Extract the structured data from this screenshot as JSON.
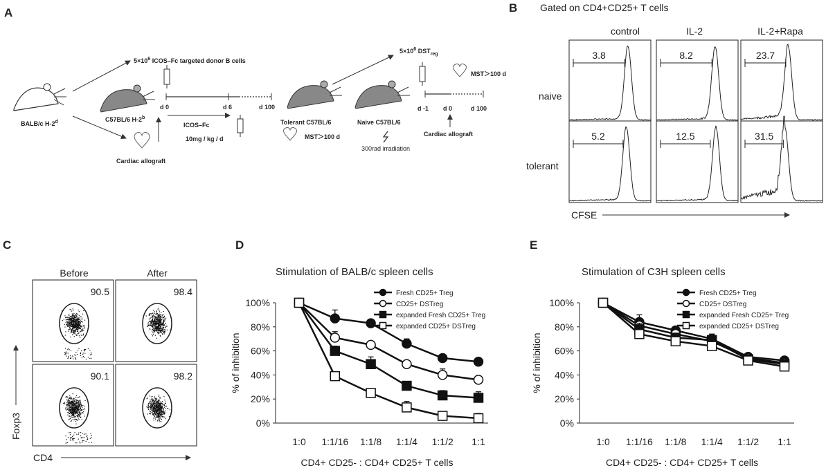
{
  "panel_labels": {
    "a": "A",
    "b": "B",
    "c": "C",
    "d": "D",
    "e": "E"
  },
  "panel_a": {
    "donor": "BALB/c H-2",
    "donor_sup": "d",
    "recipient": "C57BL/6 H-2",
    "recipient_sup": "b",
    "cardiac_left": "Cardiac allograft",
    "bcell_pre": "5×10",
    "bcell_exp": "6",
    "bcell_post": " ICOS–Fc targeted donor B cells",
    "t_d0": "d 0",
    "t_d6": "d 6",
    "t_d100": "d 100",
    "icos": "ICOS–Fc",
    "dose": "10mg / kg / d",
    "tolerant": "Tolerant C57BL/6",
    "mst_left": "MST＞100 d",
    "dst_pre": "5×10",
    "dst_exp": "6",
    "dst_main": " DST",
    "dst_sub": "reg",
    "mst_right": "MST＞100 d",
    "naive": "Naive  C57BL/6",
    "irradiation": "300rad irradiation",
    "r_dm1": "d -1",
    "r_d0": "d 0",
    "r_d100": "d 100",
    "cardiac_right": "Cardiac allograft"
  },
  "panel_b": {
    "title": "Gated on CD4+CD25+ T cells",
    "columns": [
      "control",
      "IL-2",
      "IL-2+Rapa"
    ],
    "rows": [
      "naive",
      "tolerant"
    ],
    "values": [
      [
        "3.8",
        "8.2",
        "23.7"
      ],
      [
        "5.2",
        "12.5",
        "31.5"
      ]
    ],
    "xlabel": "CFSE"
  },
  "panel_c": {
    "columns": [
      "Before",
      "After"
    ],
    "values": [
      [
        "90.5",
        "98.4"
      ],
      [
        "90.1",
        "98.2"
      ]
    ],
    "ylabel": "Foxp3",
    "xlabel": "CD4"
  },
  "chart_data": [
    {
      "type": "line",
      "title": "Stimulation of BALB/c spleen cells",
      "xlabel": "CD4+ CD25- : CD4+ CD25+ T cells",
      "ylabel": "% of inhibition",
      "categories": [
        "1:0",
        "1:1/16",
        "1:1/8",
        "1:1/4",
        "1:1/2",
        "1:1"
      ],
      "ylim": [
        0,
        100
      ],
      "yticks": [
        "0%",
        "20%",
        "40%",
        "60%",
        "80%",
        "100%"
      ],
      "series": [
        {
          "name": "Fresh CD25+ Treg",
          "marker": "filled-circle",
          "values": [
            100,
            87,
            83,
            66,
            54,
            51
          ],
          "err": [
            0,
            7,
            3,
            4,
            2,
            3
          ]
        },
        {
          "name": "CD25+ DSTreg",
          "marker": "open-circle",
          "values": [
            100,
            71,
            65,
            49,
            40,
            36
          ],
          "err": [
            0,
            5,
            2,
            2,
            5,
            2
          ]
        },
        {
          "name": "expanded Fresh CD25+ Treg",
          "marker": "filled-square",
          "values": [
            100,
            60,
            49,
            31,
            23,
            21
          ],
          "err": [
            0,
            4,
            6,
            3,
            4,
            5
          ]
        },
        {
          "name": "expanded CD25+ DSTreg",
          "marker": "open-square",
          "values": [
            100,
            39,
            25,
            13,
            6,
            4
          ],
          "err": [
            0,
            2,
            3,
            5,
            2,
            4
          ]
        }
      ]
    },
    {
      "type": "line",
      "title": "Stimulation of C3H spleen cells",
      "xlabel": "CD4+ CD25- : CD4+ CD25+ T cells",
      "ylabel": "% of inhibition",
      "categories": [
        "1:0",
        "1:1/16",
        "1:1/8",
        "1:1/4",
        "1:1/2",
        "1:1"
      ],
      "ylim": [
        0,
        100
      ],
      "yticks": [
        "0%",
        "20%",
        "40%",
        "60%",
        "80%",
        "100%"
      ],
      "series": [
        {
          "name": "Fresh CD25+ Treg",
          "marker": "filled-circle",
          "values": [
            100,
            84,
            77,
            70,
            55,
            52
          ],
          "err": [
            0,
            6,
            3,
            4,
            2,
            2
          ]
        },
        {
          "name": "CD25+ DSTreg",
          "marker": "open-circle",
          "values": [
            100,
            81,
            74,
            68,
            54,
            50
          ],
          "err": [
            0,
            4,
            2,
            3,
            2,
            2
          ]
        },
        {
          "name": "expanded Fresh CD25+ Treg",
          "marker": "filled-square",
          "values": [
            100,
            78,
            71,
            69,
            53,
            49
          ],
          "err": [
            0,
            5,
            3,
            4,
            2,
            2
          ]
        },
        {
          "name": "expanded CD25+ DSTreg",
          "marker": "open-square",
          "values": [
            100,
            74,
            68,
            64,
            52,
            47
          ],
          "err": [
            0,
            4,
            3,
            2,
            2,
            2
          ]
        }
      ]
    }
  ]
}
